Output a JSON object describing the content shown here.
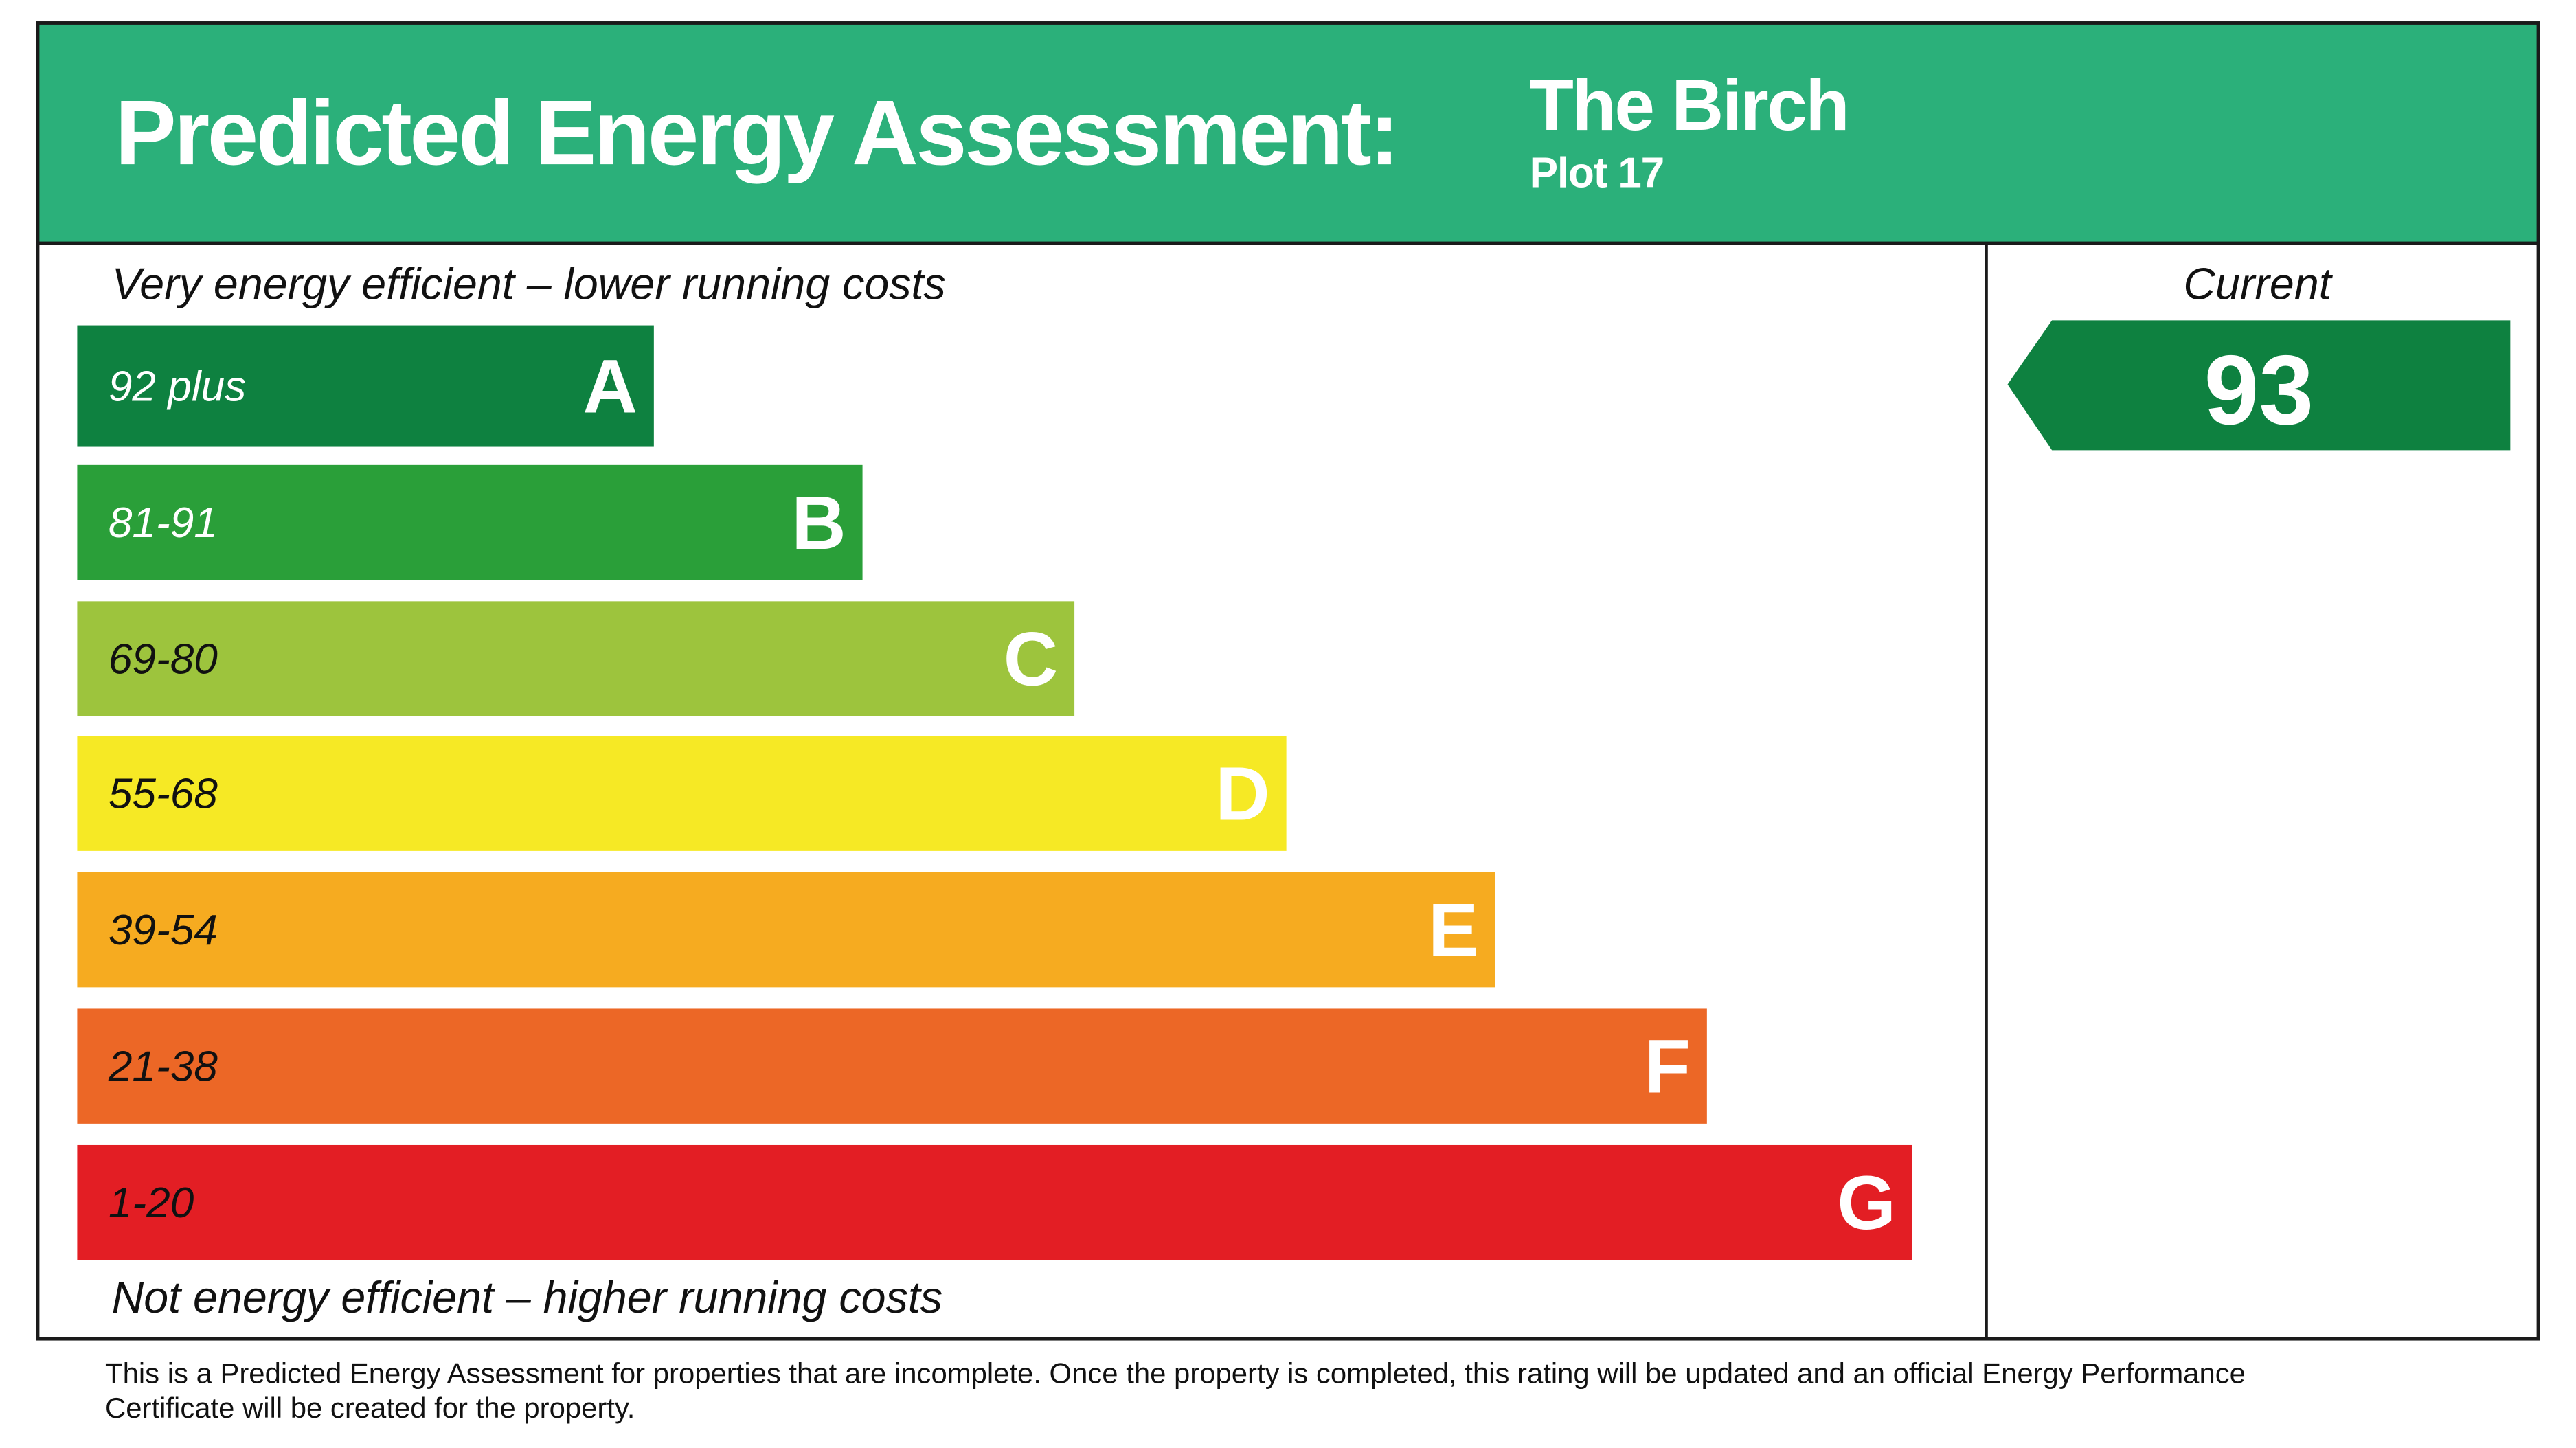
{
  "header": {
    "title": "Predicted Energy Assessment:",
    "property": "The Birch",
    "plot": "Plot 17"
  },
  "top_label": "Very energy efficient – lower running costs",
  "bottom_label": "Not energy efficient – higher running costs",
  "bands": [
    {
      "range": "92 plus",
      "letter": "A",
      "color": "#0e8140"
    },
    {
      "range": "81-91",
      "letter": "B",
      "color": "#2a9f39"
    },
    {
      "range": "69-80",
      "letter": "C",
      "color": "#9dc43d"
    },
    {
      "range": "55-68",
      "letter": "D",
      "color": "#f6e925"
    },
    {
      "range": "39-54",
      "letter": "E",
      "color": "#f6ab20"
    },
    {
      "range": "21-38",
      "letter": "F",
      "color": "#ec6726"
    },
    {
      "range": "1-20",
      "letter": "G",
      "color": "#e31e24"
    }
  ],
  "current": {
    "label": "Current",
    "value": "93",
    "color": "#0e8140"
  },
  "footnote": [
    "This is a Predicted Energy Assessment for properties that are incomplete. Once the property is completed, this rating will be updated and an official Energy Performance",
    "Certificate will be created for the property."
  ]
}
